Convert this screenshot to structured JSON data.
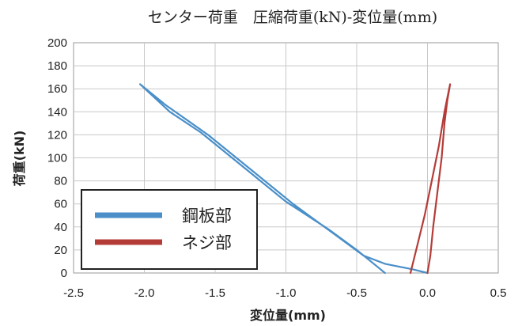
{
  "chart_data": {
    "type": "line",
    "title": "センター荷重　圧縮荷重(kN)-変位量(mm)",
    "xlabel": "変位量(mm)",
    "ylabel": "荷重(kN)",
    "xlim": [
      -2.5,
      0.5
    ],
    "ylim": [
      0,
      200
    ],
    "xticks": [
      -2.5,
      -2.0,
      -1.5,
      -1.0,
      -0.5,
      0.0,
      0.5
    ],
    "xtick_labels": [
      "-2.5",
      "-2.0",
      "-1.5",
      "-1.0",
      "-0.5",
      "0.0",
      "0.5"
    ],
    "yticks": [
      0,
      20,
      40,
      60,
      80,
      100,
      120,
      140,
      160,
      180,
      200
    ],
    "ytick_labels": [
      "0",
      "20",
      "40",
      "60",
      "80",
      "100",
      "120",
      "140",
      "160",
      "180",
      "200"
    ],
    "grid": true,
    "legend_position": "bottom-left",
    "series": [
      {
        "name": "鋼板部",
        "color": "#4a8fc8",
        "points": [
          [
            -0.3,
            0
          ],
          [
            -0.35,
            5
          ],
          [
            -0.5,
            20
          ],
          [
            -0.7,
            38
          ],
          [
            -1.0,
            62
          ],
          [
            -1.3,
            92
          ],
          [
            -1.6,
            122
          ],
          [
            -1.82,
            140
          ],
          [
            -2.03,
            164
          ],
          [
            -1.85,
            146
          ],
          [
            -1.55,
            120
          ],
          [
            -1.25,
            90
          ],
          [
            -0.95,
            60
          ],
          [
            -0.65,
            33
          ],
          [
            -0.45,
            15
          ],
          [
            -0.3,
            8
          ],
          [
            -0.1,
            3
          ],
          [
            0.0,
            0
          ]
        ]
      },
      {
        "name": "ネジ部",
        "color": "#b43c38",
        "points": [
          [
            -0.12,
            0
          ],
          [
            -0.07,
            25
          ],
          [
            -0.02,
            50
          ],
          [
            0.03,
            80
          ],
          [
            0.08,
            110
          ],
          [
            0.12,
            140
          ],
          [
            0.16,
            164
          ],
          [
            0.14,
            150
          ],
          [
            0.12,
            130
          ],
          [
            0.1,
            100
          ],
          [
            0.07,
            70
          ],
          [
            0.04,
            40
          ],
          [
            0.02,
            15
          ],
          [
            0.0,
            0
          ]
        ]
      }
    ]
  }
}
